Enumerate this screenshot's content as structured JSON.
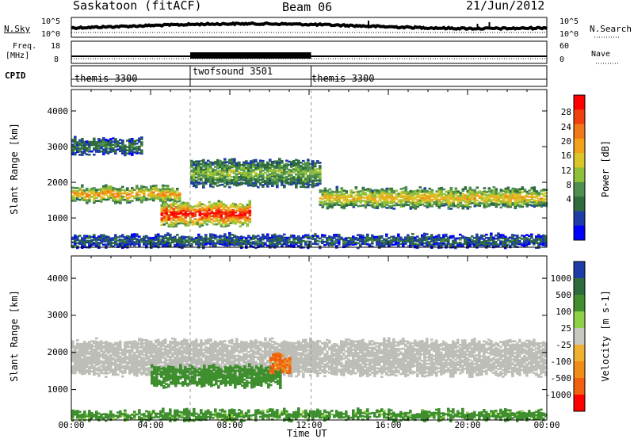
{
  "header": {
    "station": "Saskatoon (fitACF)",
    "beam": "Beam 06",
    "date": "21/Jun/2012"
  },
  "top_panel": {
    "left_label": "N.Sky",
    "left_ticks": [
      "10^5",
      "10^0"
    ],
    "right_label": "N.Search",
    "right_ticks": [
      "10^5",
      "10^0"
    ]
  },
  "freq_panel": {
    "left_label_1": "Freq.",
    "left_label_2": "[MHz]",
    "left_ticks": [
      "18",
      "8"
    ],
    "right_label": "Nave",
    "right_ticks": [
      "60",
      "0"
    ]
  },
  "cpid": {
    "label": "CPID",
    "segments": [
      "themis 3300",
      "twofsound 3501",
      "themis 3300"
    ]
  },
  "colors": {
    "power_scale": [
      "#0000ff",
      "#1e3ca8",
      "#2e6b3e",
      "#4f8f4f",
      "#8fc03a",
      "#d8c62a",
      "#f0a21a",
      "#f07818",
      "#f04010",
      "#ff0000"
    ],
    "velocity_scale": [
      "#1e3ca8",
      "#2e6b3e",
      "#3f8f2f",
      "#8fd04a",
      "#c8c8c0",
      "#f0b030",
      "#f08c18",
      "#f06010",
      "#ff0000"
    ],
    "ground_scatter": "#bebeb8"
  },
  "chart_data": [
    {
      "type": "heatmap",
      "panel": "power",
      "xlabel": "Time UT",
      "ylabel": "Slant Range [km]",
      "colorbar_label": "Power [dB]",
      "colorbar_ticks": [
        "28",
        "24",
        "20",
        "16",
        "12",
        "8",
        "4"
      ],
      "x_ticks": [
        "00:00",
        "04:00",
        "08:00",
        "12:00",
        "16:00",
        "20:00",
        "00:00"
      ],
      "y_ticks": [
        "1000",
        "2000",
        "3000",
        "4000"
      ],
      "x_range_hours": [
        0,
        24
      ],
      "y_range_km": [
        180,
        4600
      ],
      "cpid_changes_hours": [
        6.0,
        12.1
      ],
      "bands": [
        {
          "t_start": 0,
          "t_end": 5.5,
          "range_km": [
            1450,
            1850
          ],
          "power_db": 20
        },
        {
          "t_start": 4.5,
          "t_end": 9.0,
          "range_km": [
            800,
            1400
          ],
          "power_db": 28
        },
        {
          "t_start": 6.0,
          "t_end": 12.5,
          "range_km": [
            1900,
            2600
          ],
          "power_db": 12
        },
        {
          "t_start": 12.5,
          "t_end": 24,
          "range_km": [
            1300,
            1800
          ],
          "power_db": 18
        },
        {
          "t_start": 0,
          "t_end": 3.5,
          "range_km": [
            2800,
            3200
          ],
          "power_db": 8
        },
        {
          "t_start": 0,
          "t_end": 24,
          "range_km": [
            200,
            500
          ],
          "power_db": 6
        }
      ]
    },
    {
      "type": "heatmap",
      "panel": "velocity",
      "xlabel": "Time UT",
      "ylabel": "Slant Range [km]",
      "colorbar_label": "Velocity [m s-1]",
      "colorbar_ticks": [
        "1000",
        "500",
        "100",
        "25",
        "-25",
        "-100",
        "-500",
        "-1000"
      ],
      "x_ticks": [
        "00:00",
        "04:00",
        "08:00",
        "12:00",
        "16:00",
        "20:00",
        "00:00"
      ],
      "y_ticks": [
        "1000",
        "2000",
        "3000",
        "4000"
      ],
      "x_range_hours": [
        0,
        24
      ],
      "y_range_km": [
        180,
        4600
      ],
      "bands": [
        {
          "t_start": 0,
          "t_end": 24,
          "range_km": [
            1400,
            2300
          ],
          "velocity": 0,
          "ground_scatter": true
        },
        {
          "t_start": 4.0,
          "t_end": 10.5,
          "range_km": [
            1100,
            1600
          ],
          "velocity": 200
        },
        {
          "t_start": 10.0,
          "t_end": 11.0,
          "range_km": [
            1500,
            1900
          ],
          "velocity": -600
        },
        {
          "t_start": 0,
          "t_end": 24,
          "range_km": [
            200,
            400
          ],
          "velocity": 150
        }
      ]
    }
  ]
}
